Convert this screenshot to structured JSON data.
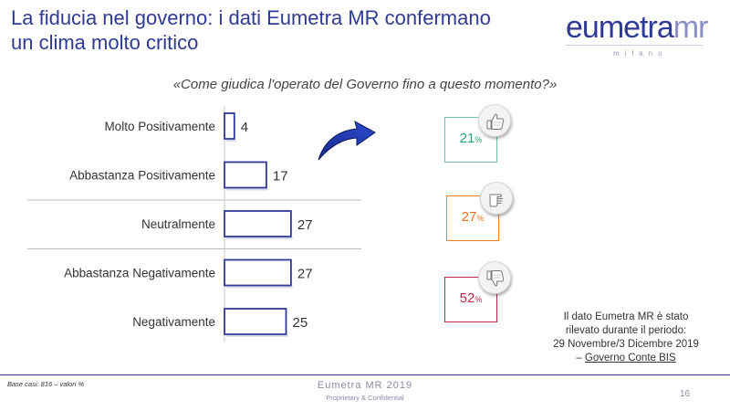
{
  "slide": {
    "title_line1": "La fiducia nel governo: i dati Eumetra MR confermano",
    "title_line2": "un clima molto critico",
    "question": "«Come giudica l'operato del Governo fino a questo momento?»"
  },
  "logo": {
    "main": "eumetra",
    "mr": "mr",
    "sub": "milano"
  },
  "chart_data": {
    "type": "bar",
    "orientation": "horizontal",
    "categories": [
      "Molto Positivamente",
      "Abbastanza Positivamente",
      "Neutralmente",
      "Abbastanza Negativamente",
      "Negativamente"
    ],
    "values": [
      4,
      17,
      27,
      27,
      25
    ],
    "bar_color": "#2e3a96",
    "grid": false,
    "summary": [
      {
        "key": "positivo",
        "value": "21",
        "unit": "%",
        "icon": "thumbs-up-icon",
        "color": "#27a56b"
      },
      {
        "key": "neutro",
        "value": "27",
        "unit": "%",
        "icon": "thumbs-sideways-icon",
        "color": "#e87020"
      },
      {
        "key": "negativo",
        "value": "52",
        "unit": "%",
        "icon": "thumbs-down-icon",
        "color": "#c0284a"
      }
    ]
  },
  "note": {
    "line1": "Il dato Eumetra MR è stato",
    "line2": "rilevato durante il periodo:",
    "line3": "29 Novembre/3 Dicembre 2019",
    "dash": "– ",
    "line4": "Governo Conte BIS"
  },
  "footer": {
    "base": "Base casi: 816 – valori %",
    "brand": "Eumetra MR 2019",
    "confidential": "Proprietary & Confidential",
    "page": "16"
  }
}
